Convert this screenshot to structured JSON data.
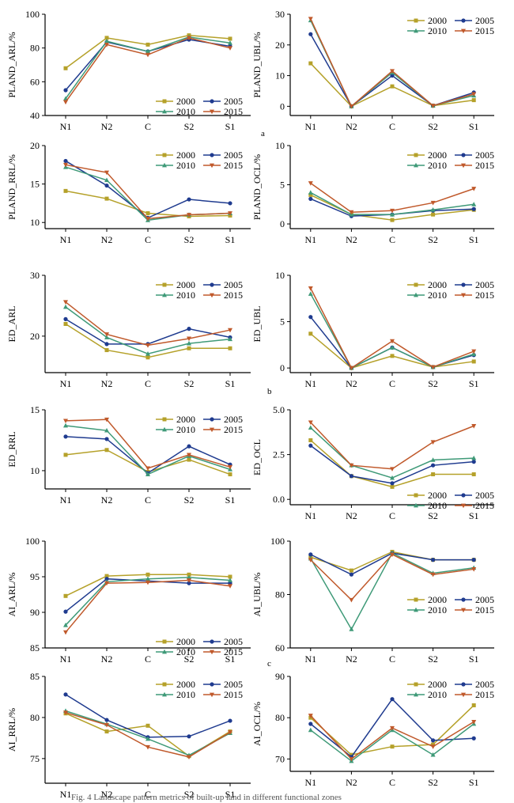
{
  "colors": {
    "2000": "#b5a12a",
    "2005": "#1f3b8f",
    "2010": "#3f9a78",
    "2015": "#c0592b"
  },
  "panel_letters": [
    "a",
    "b",
    "c"
  ],
  "caption": "Fig. 4  Landscape pattern metrics of built-up land in different functional zones",
  "chart_data": [
    {
      "type": "line",
      "ylabel": "PLAND_ARL/%",
      "categories": [
        "N1",
        "N2",
        "C",
        "S2",
        "S1"
      ],
      "ylim": [
        40,
        100
      ],
      "yticks": [
        40,
        60,
        80,
        100
      ],
      "legend": [
        "2000",
        "2005",
        "2010",
        "2015"
      ],
      "series": [
        {
          "name": "2000",
          "values": [
            68,
            86,
            82,
            87.5,
            85.5
          ]
        },
        {
          "name": "2005",
          "values": [
            55,
            83.5,
            78,
            85,
            81
          ]
        },
        {
          "name": "2010",
          "values": [
            50,
            84,
            78,
            86.5,
            83
          ]
        },
        {
          "name": "2015",
          "values": [
            48,
            82,
            76,
            86,
            80
          ]
        }
      ]
    },
    {
      "type": "line",
      "ylabel": "PLAND_UBL/%",
      "categories": [
        "N1",
        "N2",
        "C",
        "S2",
        "S1"
      ],
      "ylim": [
        -3,
        30
      ],
      "yticks": [
        0,
        10,
        20,
        30
      ],
      "legend": [
        "2000",
        "2005",
        "2010",
        "2015"
      ],
      "series": [
        {
          "name": "2000",
          "values": [
            14,
            0,
            6.5,
            0.2,
            2
          ]
        },
        {
          "name": "2005",
          "values": [
            23.5,
            0,
            10,
            0.2,
            4.5
          ]
        },
        {
          "name": "2010",
          "values": [
            28,
            0,
            11,
            0.2,
            3.5
          ]
        },
        {
          "name": "2015",
          "values": [
            28.5,
            0,
            11.5,
            0.2,
            4
          ]
        }
      ]
    },
    {
      "type": "line",
      "ylabel": "PLAND_RRL/%",
      "categories": [
        "N1",
        "N2",
        "C",
        "S2",
        "S1"
      ],
      "ylim": [
        9.2,
        20
      ],
      "yticks": [
        10,
        15,
        20
      ],
      "legend": [
        "2000",
        "2005",
        "2010",
        "2015"
      ],
      "series": [
        {
          "name": "2000",
          "values": [
            14.1,
            13.1,
            11.2,
            10.8,
            10.9
          ]
        },
        {
          "name": "2005",
          "values": [
            18,
            14.8,
            10.6,
            13,
            12.5
          ]
        },
        {
          "name": "2010",
          "values": [
            17.2,
            15.5,
            10.3,
            11,
            11.2
          ]
        },
        {
          "name": "2015",
          "values": [
            17.5,
            16.5,
            10.5,
            11,
            11.2
          ]
        }
      ]
    },
    {
      "type": "line",
      "ylabel": "PLAND_OCL/%",
      "categories": [
        "N1",
        "N2",
        "C",
        "S2",
        "S1"
      ],
      "ylim": [
        -0.6,
        10
      ],
      "yticks": [
        0,
        5,
        10
      ],
      "legend": [
        "2000",
        "2005",
        "2010",
        "2015"
      ],
      "series": [
        {
          "name": "2000",
          "values": [
            3.7,
            1.2,
            0.5,
            1.2,
            1.8
          ]
        },
        {
          "name": "2005",
          "values": [
            3.2,
            1,
            1.2,
            1.7,
            1.9
          ]
        },
        {
          "name": "2010",
          "values": [
            4,
            1.2,
            1.2,
            1.8,
            2.5
          ]
        },
        {
          "name": "2015",
          "values": [
            5.2,
            1.5,
            1.7,
            2.7,
            4.5
          ]
        }
      ]
    },
    {
      "type": "line",
      "ylabel": "ED_ARL",
      "categories": [
        "N1",
        "N2",
        "C",
        "S2",
        "S1"
      ],
      "ylim": [
        14,
        30
      ],
      "yticks": [
        20,
        30
      ],
      "legend": [
        "2000",
        "2005",
        "2010",
        "2015"
      ],
      "series": [
        {
          "name": "2000",
          "values": [
            22,
            17.7,
            16.5,
            18,
            18
          ]
        },
        {
          "name": "2005",
          "values": [
            22.8,
            18.7,
            18.7,
            21.2,
            19.8
          ]
        },
        {
          "name": "2010",
          "values": [
            24.8,
            19.8,
            17.1,
            18.8,
            19.5
          ]
        },
        {
          "name": "2015",
          "values": [
            25.6,
            20.3,
            18.5,
            19.6,
            21
          ]
        }
      ]
    },
    {
      "type": "line",
      "ylabel": "ED_UBL",
      "categories": [
        "N1",
        "N2",
        "C",
        "S2",
        "S1"
      ],
      "ylim": [
        -0.5,
        10
      ],
      "yticks": [
        0,
        5,
        10
      ],
      "legend": [
        "2000",
        "2005",
        "2010",
        "2015"
      ],
      "series": [
        {
          "name": "2000",
          "values": [
            3.7,
            0,
            1.3,
            0.1,
            0.7
          ]
        },
        {
          "name": "2005",
          "values": [
            5.5,
            0,
            2.2,
            0.1,
            1.4
          ]
        },
        {
          "name": "2010",
          "values": [
            8,
            0,
            2.2,
            0.1,
            1.5
          ]
        },
        {
          "name": "2015",
          "values": [
            8.6,
            0,
            2.9,
            0.1,
            1.8
          ]
        }
      ]
    },
    {
      "type": "line",
      "ylabel": "ED_RRL",
      "categories": [
        "N1",
        "N2",
        "C",
        "S2",
        "S1"
      ],
      "ylim": [
        8.5,
        15
      ],
      "yticks": [
        10,
        15
      ],
      "legend": [
        "2000",
        "2005",
        "2010",
        "2015"
      ],
      "series": [
        {
          "name": "2000",
          "values": [
            11.3,
            11.7,
            9.9,
            10.9,
            9.7
          ]
        },
        {
          "name": "2005",
          "values": [
            12.8,
            12.6,
            9.8,
            12,
            10.5
          ]
        },
        {
          "name": "2010",
          "values": [
            13.7,
            13.3,
            9.7,
            11.2,
            10.1
          ]
        },
        {
          "name": "2015",
          "values": [
            14.1,
            14.2,
            10.2,
            11.3,
            10.3
          ]
        }
      ]
    },
    {
      "type": "line",
      "ylabel": "ED_OCL",
      "categories": [
        "N1",
        "N2",
        "C",
        "S2",
        "S1"
      ],
      "ylim": [
        -0.3,
        5
      ],
      "yticks": [
        0.0,
        2.5,
        5.0
      ],
      "legend": [
        "2000",
        "2005",
        "2010",
        "2015"
      ],
      "series": [
        {
          "name": "2000",
          "values": [
            3.3,
            1.3,
            0.7,
            1.4,
            1.4
          ]
        },
        {
          "name": "2005",
          "values": [
            3,
            1.3,
            0.9,
            1.9,
            2.1
          ]
        },
        {
          "name": "2010",
          "values": [
            4,
            1.9,
            1.2,
            2.2,
            2.3
          ]
        },
        {
          "name": "2015",
          "values": [
            4.3,
            1.9,
            1.7,
            3.2,
            4.1
          ]
        }
      ]
    },
    {
      "type": "line",
      "ylabel": "AI_ARL/%",
      "categories": [
        "N1",
        "N2",
        "C",
        "S2",
        "S1"
      ],
      "ylim": [
        85,
        100
      ],
      "yticks": [
        85,
        90,
        95,
        100
      ],
      "legend": [
        "2000",
        "2005",
        "2010",
        "2015"
      ],
      "series": [
        {
          "name": "2000",
          "values": [
            92.3,
            95.1,
            95.3,
            95.3,
            95
          ]
        },
        {
          "name": "2005",
          "values": [
            90.1,
            94.7,
            94.4,
            94.1,
            94.1
          ]
        },
        {
          "name": "2010",
          "values": [
            88.2,
            94.3,
            94.7,
            94.9,
            94.5
          ]
        },
        {
          "name": "2015",
          "values": [
            87.2,
            94.1,
            94.2,
            94.5,
            93.7
          ]
        }
      ]
    },
    {
      "type": "line",
      "ylabel": "AI_UBL/%",
      "categories": [
        "N1",
        "N2",
        "C",
        "S2",
        "S1"
      ],
      "ylim": [
        60,
        100
      ],
      "yticks": [
        60,
        80,
        100
      ],
      "legend": [
        "2000",
        "2005",
        "2010",
        "2015"
      ],
      "series": [
        {
          "name": "2000",
          "values": [
            94,
            89,
            96,
            93,
            93
          ]
        },
        {
          "name": "2005",
          "values": [
            95,
            87.5,
            95.5,
            93,
            93
          ]
        },
        {
          "name": "2010",
          "values": [
            93.5,
            67,
            95.5,
            88,
            90
          ]
        },
        {
          "name": "2015",
          "values": [
            93,
            78,
            95,
            87.5,
            89.5
          ]
        }
      ]
    },
    {
      "type": "line",
      "ylabel": "AI_RRL/%",
      "categories": [
        "N1",
        "N2",
        "C",
        "S2",
        "S1"
      ],
      "ylim": [
        72,
        85
      ],
      "yticks": [
        75,
        80,
        85
      ],
      "legend": [
        "2000",
        "2005",
        "2010",
        "2015"
      ],
      "series": [
        {
          "name": "2000",
          "values": [
            80.5,
            78.3,
            79,
            75.3,
            78.3
          ]
        },
        {
          "name": "2005",
          "values": [
            82.8,
            79.7,
            77.6,
            77.7,
            79.6
          ]
        },
        {
          "name": "2010",
          "values": [
            80.8,
            79.2,
            77.4,
            75.4,
            78.1
          ]
        },
        {
          "name": "2015",
          "values": [
            80.6,
            79.1,
            76.4,
            75.2,
            78.2
          ]
        }
      ]
    },
    {
      "type": "line",
      "ylabel": "AI_OCL/%",
      "categories": [
        "N1",
        "N2",
        "C",
        "S2",
        "S1"
      ],
      "ylim": [
        67,
        90
      ],
      "yticks": [
        70,
        80,
        90
      ],
      "legend": [
        "2000",
        "2005",
        "2010",
        "2015"
      ],
      "series": [
        {
          "name": "2000",
          "values": [
            80,
            71,
            73,
            73.5,
            83
          ]
        },
        {
          "name": "2005",
          "values": [
            78.5,
            70.5,
            84.5,
            74.5,
            75
          ]
        },
        {
          "name": "2010",
          "values": [
            77,
            69.5,
            77,
            71,
            78.5
          ]
        },
        {
          "name": "2015",
          "values": [
            80.5,
            70,
            77.5,
            73,
            79
          ]
        }
      ]
    }
  ]
}
